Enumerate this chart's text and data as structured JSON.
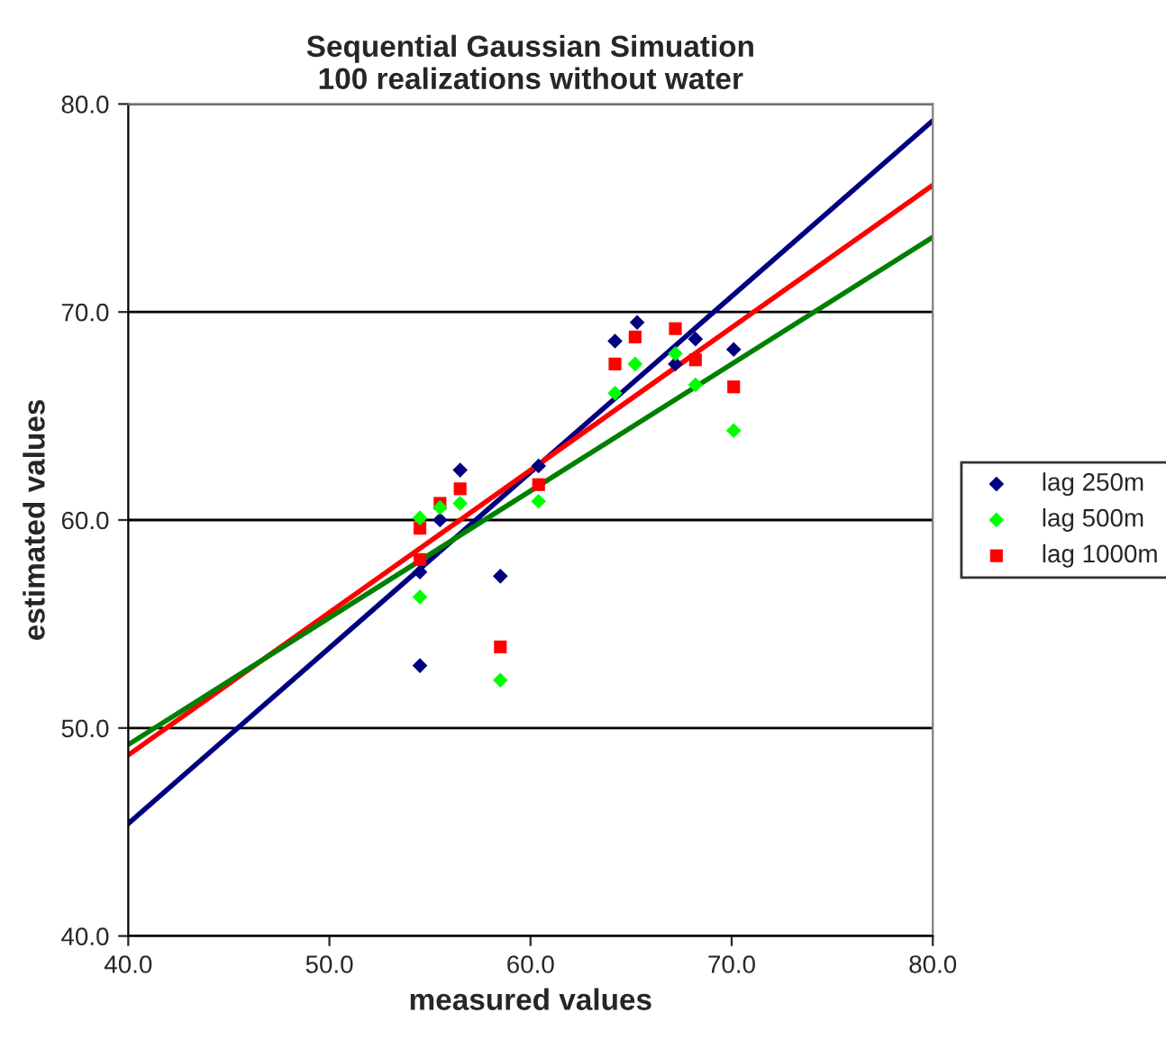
{
  "chart_data": {
    "type": "scatter",
    "title": "Sequential Gaussian Simuation\n100 realizations without water",
    "xlabel": "measured values",
    "ylabel": "estimated values",
    "xlim": [
      40,
      80
    ],
    "ylim": [
      40,
      80
    ],
    "xticks": [
      {
        "value": 40,
        "label": "40.0"
      },
      {
        "value": 50,
        "label": "50.0"
      },
      {
        "value": 60,
        "label": "60.0"
      },
      {
        "value": 70,
        "label": "70.0"
      },
      {
        "value": 80,
        "label": "80.0"
      }
    ],
    "yticks": [
      {
        "value": 40,
        "label": "40.0"
      },
      {
        "value": 50,
        "label": "50.0"
      },
      {
        "value": 60,
        "label": "60.0"
      },
      {
        "value": 70,
        "label": "70.0"
      },
      {
        "value": 80,
        "label": "80.0"
      }
    ],
    "grid": "y",
    "legend": "right",
    "series": [
      {
        "name": "lag 250m",
        "color": "#000080",
        "marker": "diamond",
        "x": [
          54.5,
          54.5,
          55.5,
          56.5,
          58.5,
          60.4,
          64.2,
          65.3,
          67.2,
          68.2,
          70.1
        ],
        "values": [
          53.0,
          57.5,
          60.0,
          62.4,
          57.3,
          62.6,
          68.6,
          69.5,
          67.5,
          68.7,
          68.2
        ]
      },
      {
        "name": "lag 500m",
        "color": "#00ff00",
        "marker": "diamond",
        "x": [
          54.5,
          54.5,
          55.5,
          56.5,
          58.5,
          60.4,
          64.2,
          65.2,
          67.2,
          68.2,
          70.1
        ],
        "values": [
          60.1,
          56.3,
          60.6,
          60.8,
          52.3,
          60.9,
          66.1,
          67.5,
          68.0,
          66.5,
          64.3
        ]
      },
      {
        "name": "lag 1000m",
        "color": "#ff0000",
        "marker": "square",
        "x": [
          54.5,
          54.5,
          55.5,
          56.5,
          58.5,
          60.4,
          64.2,
          65.2,
          67.2,
          68.2,
          70.1
        ],
        "values": [
          59.6,
          58.1,
          60.8,
          61.5,
          53.9,
          61.7,
          67.5,
          68.8,
          69.2,
          67.7,
          66.4
        ]
      },
      {
        "type": "line",
        "color": "#000080",
        "x": [
          40,
          80
        ],
        "values": [
          45.4,
          79.2
        ]
      },
      {
        "type": "line",
        "color": "#ff0000",
        "x": [
          40,
          80
        ],
        "values": [
          48.7,
          76.1
        ]
      },
      {
        "type": "line",
        "color": "#008000",
        "x": [
          40,
          80
        ],
        "values": [
          49.2,
          73.6
        ]
      }
    ]
  }
}
